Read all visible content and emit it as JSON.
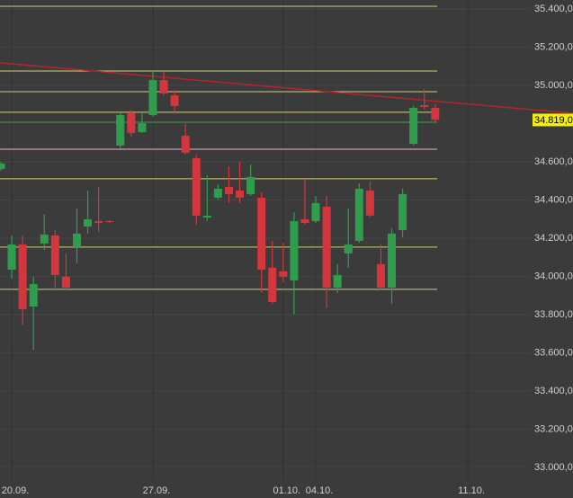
{
  "chart_data": {
    "type": "candlestick",
    "categories": [
      null,
      "20.09.",
      null,
      null,
      null,
      null,
      null,
      null,
      null,
      null,
      null,
      null,
      null,
      null,
      "27.09.",
      null,
      null,
      null,
      null,
      null,
      null,
      null,
      null,
      null,
      null,
      null,
      "01.10.",
      null,
      null,
      "04.10.",
      null,
      null,
      null,
      null,
      null,
      null,
      null,
      null,
      null,
      null,
      null,
      null,
      null,
      "11.10."
    ],
    "open": [
      34562,
      34035,
      34167,
      33842,
      34172,
      34214,
      33998,
      34148,
      34261,
      34289,
      34289,
      34685,
      34854,
      34755,
      34845,
      35028,
      34948,
      34736,
      34619,
      34308,
      34412,
      34468,
      34449,
      34431,
      34412,
      34045,
      34026,
      33979,
      34299,
      34289,
      34365,
      33941,
      34120,
      34186,
      34449,
      34064,
      33941,
      34242,
      34694,
      34896,
      34882,
      null,
      null,
      null
    ],
    "high": [
      34600,
      34214,
      34214,
      33998,
      34327,
      34242,
      34120,
      34355,
      34449,
      34468,
      34294,
      34859,
      34873,
      34854,
      35071,
      35071,
      34976,
      34798,
      34638,
      34529,
      34482,
      34576,
      34600,
      34586,
      34440,
      34186,
      34176,
      34336,
      34506,
      34421,
      34421,
      34064,
      34355,
      34487,
      34496,
      34167,
      34252,
      34459,
      34892,
      34981,
      34901,
      null,
      null,
      null
    ],
    "low": [
      34553,
      33988,
      33744,
      33616,
      34139,
      33932,
      33932,
      34068,
      34224,
      34233,
      34280,
      34671,
      34732,
      34751,
      34835,
      34948,
      34854,
      34638,
      34271,
      34289,
      34402,
      34384,
      34384,
      34421,
      33913,
      33856,
      33969,
      33800,
      34271,
      34280,
      33833,
      33913,
      34045,
      34176,
      34308,
      33932,
      33856,
      34205,
      34685,
      34873,
      34810,
      null,
      null,
      null
    ],
    "close": [
      34591,
      34167,
      33828,
      33960,
      34219,
      34007,
      33941,
      34224,
      34299,
      34280,
      34285,
      34845,
      34751,
      34802,
      35028,
      34958,
      34892,
      34647,
      34318,
      34318,
      34459,
      34431,
      34412,
      34520,
      34035,
      33866,
      33998,
      34289,
      34280,
      34384,
      33941,
      34007,
      34167,
      34459,
      34318,
      33941,
      34224,
      34431,
      34882,
      34887,
      34819,
      null,
      null,
      null
    ],
    "up_color": "#2f9e4c",
    "down_color": "#d3363c",
    "ylim": [
      32929,
      35447
    ],
    "yticks": [
      {
        "value": 35400,
        "label": "35.400,0"
      },
      {
        "value": 35200,
        "label": "35.200,0"
      },
      {
        "value": 35000,
        "label": "35.000,0"
      },
      {
        "value": 34600,
        "label": "34.600,0"
      },
      {
        "value": 34400,
        "label": "34.400,0"
      },
      {
        "value": 34200,
        "label": "34.200,0"
      },
      {
        "value": 34000,
        "label": "34.000,0"
      },
      {
        "value": 33800,
        "label": "33.800,0"
      },
      {
        "value": 33600,
        "label": "33.600,0"
      },
      {
        "value": 33400,
        "label": "33.400,0"
      },
      {
        "value": 33200,
        "label": "33.200,0"
      },
      {
        "value": 33000,
        "label": "33.000,0"
      }
    ],
    "levels": [
      {
        "value": 35414,
        "color": "#d6cc78"
      },
      {
        "value": 35075,
        "color": "#d6cc78"
      },
      {
        "value": 34967,
        "color": "#d6cc78"
      },
      {
        "value": 34859,
        "color": "#d6cc78"
      },
      {
        "value": 34807,
        "color": "#3aa64a"
      },
      {
        "value": 34666,
        "color": "#e6b4d8"
      },
      {
        "value": 34511,
        "color": "#d6cc78"
      },
      {
        "value": 34153,
        "color": "#d6cc78"
      },
      {
        "value": 33932,
        "color": "#d6cc78"
      }
    ],
    "trendline": {
      "values": [
        35118,
        34854
      ],
      "color": "#b3262c"
    },
    "last_price": {
      "value": 34819,
      "label": "34.819,0",
      "color": "#f5f000"
    }
  }
}
